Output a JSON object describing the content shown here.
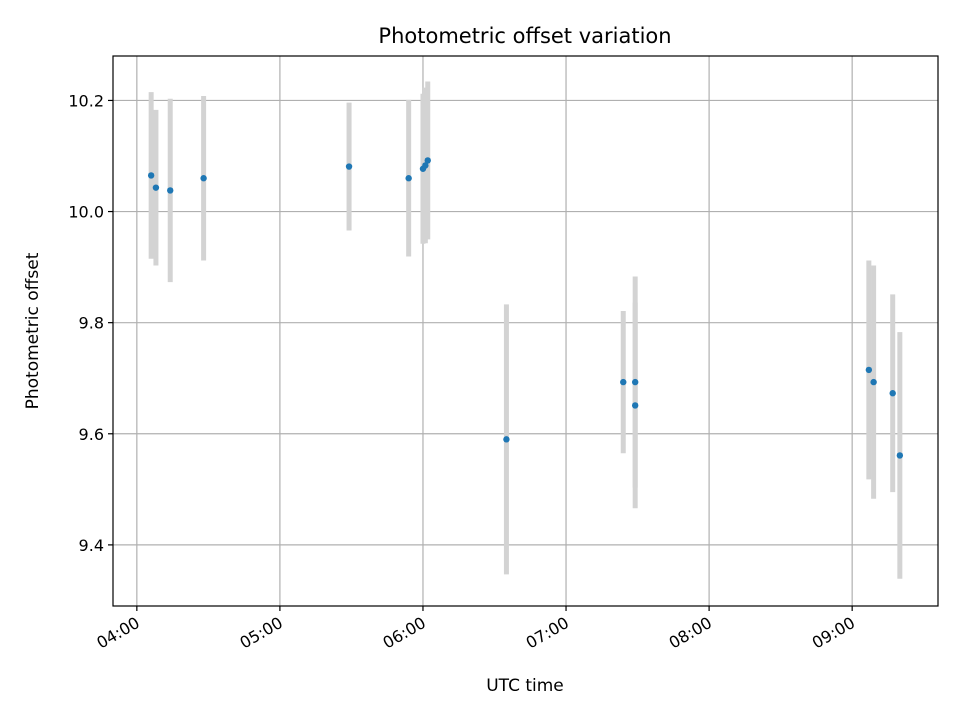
{
  "chart_data": {
    "type": "scatter",
    "title": "Photometric offset variation",
    "xlabel": "UTC time",
    "ylabel": "Photometric offset",
    "x_ticks": [
      "04:00",
      "05:00",
      "06:00",
      "07:00",
      "08:00",
      "09:00"
    ],
    "y_ticks": [
      "9.4",
      "9.6",
      "9.8",
      "10.0",
      "10.2"
    ],
    "xlim": [
      "03:50",
      "09:36"
    ],
    "ylim": [
      9.29,
      10.28
    ],
    "grid": true,
    "colors": {
      "points": "#1f77b4",
      "errorbars": "#d3d3d3",
      "grid": "#b0b0b0"
    },
    "series": [
      {
        "points": [
          {
            "x": "04:06",
            "y": 10.065,
            "yerr": 0.15
          },
          {
            "x": "04:08",
            "y": 10.043,
            "yerr": 0.14
          },
          {
            "x": "04:14",
            "y": 10.038,
            "yerr": 0.165
          },
          {
            "x": "04:28",
            "y": 10.06,
            "yerr": 0.148
          },
          {
            "x": "05:29",
            "y": 10.081,
            "yerr": 0.115
          },
          {
            "x": "05:54",
            "y": 10.06,
            "yerr": 0.141
          },
          {
            "x": "06:00",
            "y": 10.077,
            "yerr": 0.135
          },
          {
            "x": "06:01",
            "y": 10.083,
            "yerr": 0.14
          },
          {
            "x": "06:02",
            "y": 10.092,
            "yerr": 0.142
          },
          {
            "x": "06:35",
            "y": 9.59,
            "yerr": 0.243
          },
          {
            "x": "07:24",
            "y": 9.693,
            "yerr": 0.128
          },
          {
            "x": "07:29",
            "y": 9.693,
            "yerr": 0.19
          },
          {
            "x": "07:29",
            "y": 9.651,
            "yerr": 0.185
          },
          {
            "x": "09:07",
            "y": 9.715,
            "yerr": 0.197
          },
          {
            "x": "09:09",
            "y": 9.693,
            "yerr": 0.21
          },
          {
            "x": "09:17",
            "y": 9.673,
            "yerr": 0.178
          },
          {
            "x": "09:20",
            "y": 9.561,
            "yerr": 0.222
          }
        ]
      }
    ]
  }
}
